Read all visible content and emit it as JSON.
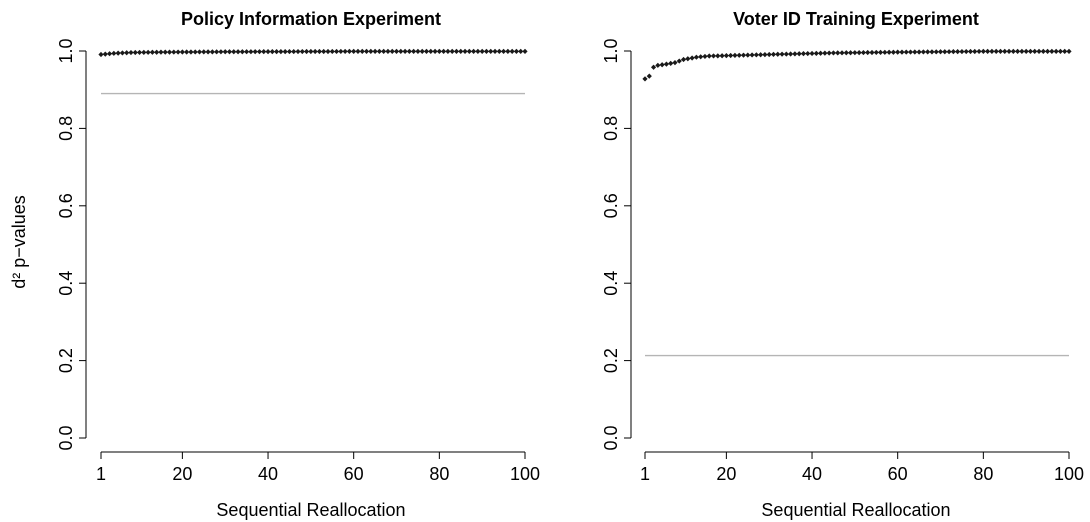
{
  "chart_data": [
    {
      "type": "scatter",
      "title": "Policy Information Experiment",
      "xlabel": "Sequential Reallocation",
      "ylabel": "d² p−values",
      "xlim": [
        1,
        100
      ],
      "ylim": [
        0,
        1
      ],
      "xticks": [
        "1",
        "20",
        "40",
        "60",
        "80",
        "100"
      ],
      "yticks": [
        "0.0",
        "0.2",
        "0.4",
        "0.6",
        "0.8",
        "1.0"
      ],
      "reference_line": {
        "y": 0.89,
        "color": "#b5b5b5"
      },
      "series": [
        {
          "color": "#1a1a1a",
          "profile": [
            [
              1,
              0.991
            ],
            [
              2,
              0.992
            ],
            [
              4,
              0.994
            ],
            [
              8,
              0.996
            ],
            [
              15,
              0.997
            ],
            [
              30,
              0.998
            ],
            [
              60,
              0.999
            ],
            [
              100,
              0.999
            ]
          ]
        }
      ],
      "grid": false,
      "legend": "none"
    },
    {
      "type": "scatter",
      "title": "Voter ID Training Experiment",
      "xlabel": "Sequential Reallocation",
      "ylabel": "",
      "xlim": [
        1,
        100
      ],
      "ylim": [
        0,
        1
      ],
      "xticks": [
        "1",
        "20",
        "40",
        "60",
        "80",
        "100"
      ],
      "yticks": [
        "0.0",
        "0.2",
        "0.4",
        "0.6",
        "0.8",
        "1.0"
      ],
      "reference_line": {
        "y": 0.213,
        "color": "#b5b5b5"
      },
      "series": [
        {
          "color": "#1a1a1a",
          "profile": [
            [
              1,
              0.928
            ],
            [
              2,
              0.935
            ],
            [
              3,
              0.958
            ],
            [
              4,
              0.963
            ],
            [
              6,
              0.966
            ],
            [
              8,
              0.97
            ],
            [
              10,
              0.978
            ],
            [
              13,
              0.984
            ],
            [
              16,
              0.987
            ],
            [
              20,
              0.988
            ],
            [
              30,
              0.991
            ],
            [
              45,
              0.995
            ],
            [
              60,
              0.997
            ],
            [
              80,
              0.999
            ],
            [
              100,
              0.999
            ]
          ]
        }
      ],
      "grid": false,
      "legend": "none"
    }
  ]
}
